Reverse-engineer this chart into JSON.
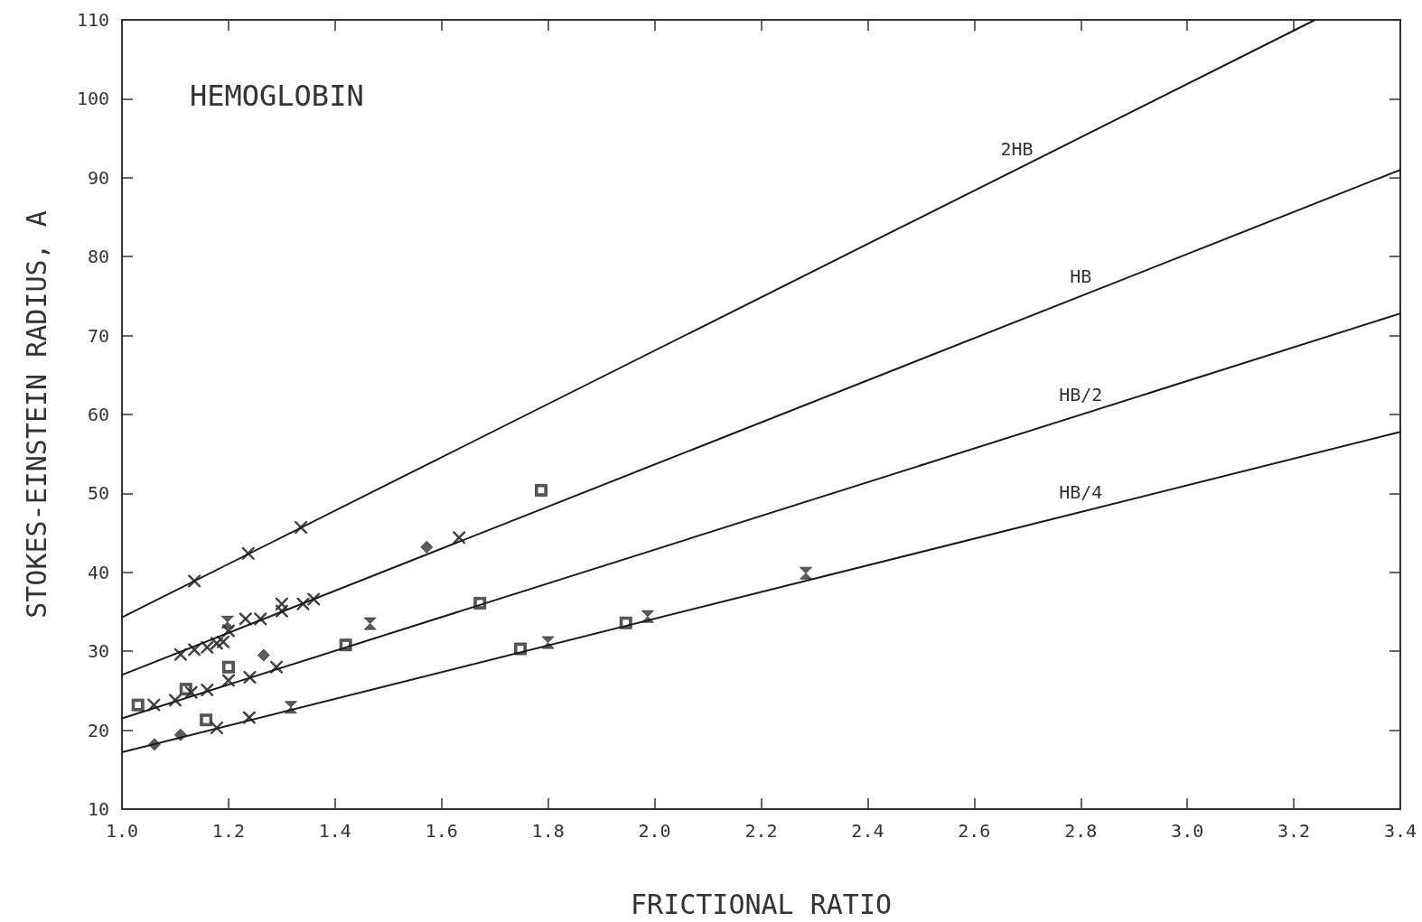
{
  "chart_data": {
    "type": "scatter",
    "title": "HEMOGLOBIN",
    "xlabel": "FRICTIONAL RATIO",
    "ylabel": "STOKES-EINSTEIN RADIUS, A",
    "xlim": [
      1.0,
      3.4
    ],
    "ylim": [
      10,
      110
    ],
    "xticks": [
      {
        "value": 1.0,
        "label": "1.0"
      },
      1.2,
      1.4,
      1.6,
      1.8,
      {
        "value": 2.0,
        "label": "2.0"
      },
      2.2,
      2.4,
      2.6,
      2.8,
      {
        "value": 3.0,
        "label": "3.0"
      },
      3.2,
      3.4
    ],
    "yticks": [
      10,
      20,
      30,
      40,
      50,
      60,
      70,
      80,
      90,
      100,
      110
    ],
    "grid": false,
    "series": [
      {
        "type": "line",
        "name": "2HB",
        "color": "#1a1a1a",
        "marker": "none",
        "x": [
          1.0,
          3.24
        ],
        "values": [
          34.3,
          110
        ]
      },
      {
        "type": "line",
        "name": "HB",
        "color": "#1a1a1a",
        "marker": "none",
        "x": [
          1.0,
          3.4
        ],
        "values": [
          27.0,
          91.0
        ]
      },
      {
        "type": "line",
        "name": "HB/2",
        "color": "#1a1a1a",
        "marker": "none",
        "x": [
          1.0,
          3.4
        ],
        "values": [
          21.5,
          72.8
        ]
      },
      {
        "type": "line",
        "name": "HB/4",
        "color": "#1a1a1a",
        "marker": "none",
        "x": [
          1.0,
          3.4
        ],
        "values": [
          17.2,
          57.8
        ]
      },
      {
        "color": "#333333",
        "marker": "cross",
        "x": [
          1.136,
          1.237,
          1.336,
          1.11,
          1.136,
          1.16,
          1.178,
          1.19,
          1.2,
          1.232,
          1.26,
          1.3,
          1.3,
          1.34,
          1.36,
          1.633,
          1.06,
          1.1,
          1.13,
          1.16,
          1.2,
          1.24,
          1.29,
          1.178,
          1.239
        ],
        "values": [
          38.9,
          42.4,
          45.7,
          29.6,
          30.2,
          30.5,
          31.0,
          31.2,
          32.6,
          34.1,
          34.1,
          36.0,
          35.1,
          36.0,
          36.6,
          44.4,
          23.2,
          23.8,
          24.8,
          25.1,
          26.3,
          26.7,
          28.0,
          20.3,
          21.6
        ]
      },
      {
        "color": "#333333",
        "marker": "diamond",
        "x": [
          1.572,
          1.266,
          1.061,
          1.11
        ],
        "values": [
          43.2,
          29.5,
          18.2,
          19.4
        ]
      },
      {
        "color": "#333333",
        "marker": "square",
        "x": [
          1.787,
          1.03,
          1.12,
          1.2,
          1.42,
          1.672,
          1.158,
          1.748,
          1.946
        ],
        "values": [
          50.4,
          23.2,
          25.2,
          28.0,
          30.8,
          36.1,
          21.3,
          30.3,
          33.6
        ]
      },
      {
        "color": "#333333",
        "marker": "triangle",
        "x": [
          1.198,
          1.466,
          1.317,
          1.8,
          1.987,
          2.284
        ],
        "values": [
          33.7,
          33.5,
          22.9,
          31.1,
          34.4,
          39.9
        ]
      }
    ]
  }
}
